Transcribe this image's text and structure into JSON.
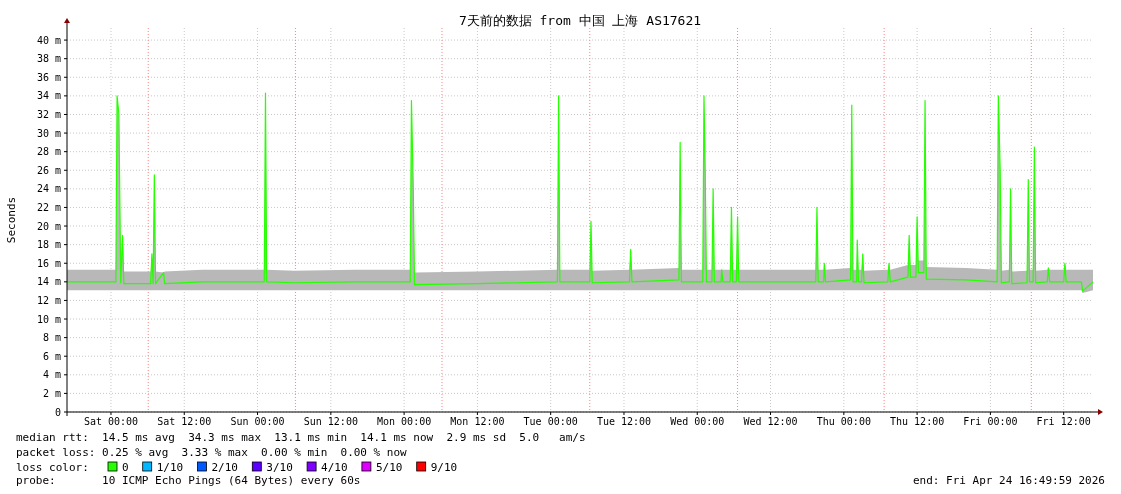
{
  "chart_data": {
    "type": "line",
    "title": "7天前的数据 from 中国 上海 AS17621",
    "ylabel": "Seconds",
    "xlim": [
      "2026-04-17T16:48",
      "2026-04-24T16:48"
    ],
    "ylim": [
      0,
      41.3
    ],
    "xticks": [
      {
        "value": "2026-04-18T00:00",
        "label": "Sat 00:00"
      },
      {
        "value": "2026-04-18T12:00",
        "label": "Sat 12:00"
      },
      {
        "value": "2026-04-19T00:00",
        "label": "Sun 00:00"
      },
      {
        "value": "2026-04-19T12:00",
        "label": "Sun 12:00"
      },
      {
        "value": "2026-04-20T00:00",
        "label": "Mon 00:00"
      },
      {
        "value": "2026-04-20T12:00",
        "label": "Mon 12:00"
      },
      {
        "value": "2026-04-21T00:00",
        "label": "Tue 00:00"
      },
      {
        "value": "2026-04-21T12:00",
        "label": "Tue 12:00"
      },
      {
        "value": "2026-04-22T00:00",
        "label": "Wed 00:00"
      },
      {
        "value": "2026-04-22T12:00",
        "label": "Wed 12:00"
      },
      {
        "value": "2026-04-23T00:00",
        "label": "Thu 00:00"
      },
      {
        "value": "2026-04-23T12:00",
        "label": "Thu 12:00"
      },
      {
        "value": "2026-04-24T00:00",
        "label": "Fri 00:00"
      },
      {
        "value": "2026-04-24T12:00",
        "label": "Fri 12:00"
      }
    ],
    "yticks": [
      0,
      {
        "value": 2,
        "label": "2 m"
      },
      {
        "value": 4,
        "label": "4 m"
      },
      {
        "value": 6,
        "label": "6 m"
      },
      {
        "value": 8,
        "label": "8 m"
      },
      {
        "value": 10,
        "label": "10 m"
      },
      {
        "value": 12,
        "label": "12 m"
      },
      {
        "value": 14,
        "label": "14 m"
      },
      {
        "value": 16,
        "label": "16 m"
      },
      {
        "value": 18,
        "label": "18 m"
      },
      {
        "value": 20,
        "label": "20 m"
      },
      {
        "value": 22,
        "label": "22 m"
      },
      {
        "value": 24,
        "label": "24 m"
      },
      {
        "value": 26,
        "label": "26 m"
      },
      {
        "value": 28,
        "label": "28 m"
      },
      {
        "value": 30,
        "label": "30 m"
      },
      {
        "value": 32,
        "label": "32 m"
      },
      {
        "value": 34,
        "label": "34 m"
      },
      {
        "value": 36,
        "label": "36 m"
      },
      {
        "value": 38,
        "label": "38 m"
      },
      {
        "value": 40,
        "label": "40 m"
      }
    ],
    "x": [
      "2026-04-17T16:48",
      "2026-04-18T00:48",
      "2026-04-18T01:00",
      "2026-04-18T01:18",
      "2026-04-18T01:36",
      "2026-04-18T01:54",
      "2026-04-18T02:06",
      "2026-04-18T06:30",
      "2026-04-18T06:42",
      "2026-04-18T06:54",
      "2026-04-18T07:06",
      "2026-04-18T07:18",
      "2026-04-18T08:36",
      "2026-04-18T08:48",
      "2026-04-18T15:00",
      "2026-04-19T01:06",
      "2026-04-19T01:18",
      "2026-04-19T01:30",
      "2026-04-19T06:00",
      "2026-04-19T16:00",
      "2026-04-20T01:00",
      "2026-04-20T01:12",
      "2026-04-20T01:30",
      "2026-04-20T01:42",
      "2026-04-20T12:00",
      "2026-04-21T01:06",
      "2026-04-21T01:18",
      "2026-04-21T01:30",
      "2026-04-21T06:24",
      "2026-04-21T06:36",
      "2026-04-21T06:48",
      "2026-04-21T12:54",
      "2026-04-21T13:06",
      "2026-04-21T13:18",
      "2026-04-21T21:00",
      "2026-04-21T21:12",
      "2026-04-21T21:24",
      "2026-04-22T00:54",
      "2026-04-22T01:06",
      "2026-04-22T01:18",
      "2026-04-22T01:30",
      "2026-04-22T02:24",
      "2026-04-22T02:36",
      "2026-04-22T02:48",
      "2026-04-22T03:54",
      "2026-04-22T04:00",
      "2026-04-22T04:12",
      "2026-04-22T05:24",
      "2026-04-22T05:36",
      "2026-04-22T05:48",
      "2026-04-22T06:24",
      "2026-04-22T06:36",
      "2026-04-22T06:48",
      "2026-04-22T14:00",
      "2026-04-22T19:24",
      "2026-04-22T19:36",
      "2026-04-22T19:48",
      "2026-04-22T20:42",
      "2026-04-22T20:48",
      "2026-04-22T21:00",
      "2026-04-23T01:06",
      "2026-04-23T01:18",
      "2026-04-23T01:30",
      "2026-04-23T02:06",
      "2026-04-23T02:12",
      "2026-04-23T02:24",
      "2026-04-23T02:54",
      "2026-04-23T03:06",
      "2026-04-23T03:18",
      "2026-04-23T07:12",
      "2026-04-23T07:24",
      "2026-04-23T07:36",
      "2026-04-23T10:30",
      "2026-04-23T10:42",
      "2026-04-23T10:54",
      "2026-04-23T11:48",
      "2026-04-23T12:00",
      "2026-04-23T12:12",
      "2026-04-23T13:06",
      "2026-04-23T13:18",
      "2026-04-23T13:30",
      "2026-04-23T20:00",
      "2026-04-24T01:06",
      "2026-04-24T01:18",
      "2026-04-24T01:36",
      "2026-04-24T01:48",
      "2026-04-24T03:06",
      "2026-04-24T03:18",
      "2026-04-24T03:30",
      "2026-04-24T06:00",
      "2026-04-24T06:12",
      "2026-04-24T06:24",
      "2026-04-24T07:00",
      "2026-04-24T07:12",
      "2026-04-24T07:24",
      "2026-04-24T09:18",
      "2026-04-24T09:30",
      "2026-04-24T09:42",
      "2026-04-24T12:00",
      "2026-04-24T12:12",
      "2026-04-24T12:24",
      "2026-04-24T14:54",
      "2026-04-24T15:06",
      "2026-04-24T16:48"
    ],
    "series": [
      {
        "name": "0",
        "color": "#26ff00",
        "values": [
          14.0,
          14.0,
          34.0,
          32.0,
          13.9,
          19.0,
          13.8,
          13.8,
          17.0,
          13.8,
          25.5,
          13.8,
          15.0,
          13.8,
          14.0,
          14.0,
          34.3,
          14.0,
          13.9,
          14.0,
          14.0,
          33.5,
          24.0,
          13.7,
          13.8,
          14.0,
          34.0,
          14.0,
          14.0,
          20.5,
          13.9,
          14.0,
          17.5,
          14.0,
          14.2,
          29.0,
          14.0,
          14.0,
          34.0,
          26.0,
          14.0,
          14.0,
          24.0,
          14.0,
          14.0,
          15.3,
          14.0,
          14.0,
          22.0,
          14.0,
          14.0,
          21.0,
          14.0,
          14.0,
          14.0,
          22.0,
          14.0,
          14.0,
          16.0,
          14.0,
          14.2,
          33.0,
          14.0,
          14.0,
          18.5,
          14.0,
          14.0,
          17.0,
          13.9,
          14.0,
          16.0,
          14.0,
          14.5,
          19.0,
          14.5,
          14.5,
          21.0,
          15.0,
          15.0,
          33.5,
          14.3,
          14.2,
          14.0,
          34.0,
          26.0,
          13.9,
          14.0,
          24.0,
          13.8,
          13.9,
          25.0,
          14.0,
          14.0,
          28.5,
          13.9,
          14.0,
          15.5,
          14.0,
          14.0,
          16.0,
          14.0,
          14.0,
          13.0,
          14.0
        ],
        "lower": [
          13.1,
          13.1,
          13.1,
          13.1,
          13.1,
          13.1,
          13.1,
          13.1,
          13.1,
          13.1,
          13.1,
          13.1,
          13.1,
          13.1,
          13.1,
          13.1,
          13.1,
          13.1,
          13.1,
          13.1,
          13.1,
          13.1,
          13.1,
          13.1,
          13.1,
          13.1,
          13.1,
          13.1,
          13.1,
          13.1,
          13.1,
          13.1,
          13.1,
          13.1,
          13.1,
          13.1,
          13.1,
          13.1,
          13.1,
          13.1,
          13.1,
          13.1,
          13.1,
          13.1,
          13.1,
          13.1,
          13.1,
          13.1,
          13.1,
          13.1,
          13.1,
          13.1,
          13.1,
          13.1,
          13.1,
          13.1,
          13.1,
          13.1,
          13.1,
          13.1,
          13.1,
          13.1,
          13.1,
          13.1,
          13.1,
          13.1,
          13.1,
          13.1,
          13.1,
          13.1,
          13.1,
          13.1,
          13.1,
          13.1,
          13.1,
          13.1,
          13.1,
          13.1,
          13.1,
          13.1,
          13.1,
          13.1,
          13.1,
          13.1,
          13.1,
          13.1,
          13.1,
          13.1,
          13.1,
          13.1,
          13.1,
          13.1,
          13.1,
          13.1,
          13.1,
          13.1,
          13.1,
          13.1,
          13.1,
          13.1,
          13.1,
          13.1,
          12.8,
          13.1
        ],
        "upper": [
          15.3,
          15.3,
          34.0,
          32.0,
          15.2,
          19.0,
          15.1,
          15.1,
          17.0,
          15.1,
          25.5,
          15.1,
          15.0,
          15.1,
          15.3,
          15.3,
          34.3,
          15.3,
          15.2,
          15.3,
          15.3,
          33.5,
          24.0,
          15.0,
          15.1,
          15.3,
          34.0,
          15.3,
          15.3,
          20.5,
          15.2,
          15.3,
          17.5,
          15.3,
          15.5,
          29.0,
          15.3,
          15.3,
          34.0,
          26.0,
          15.3,
          15.3,
          24.0,
          15.3,
          15.3,
          15.3,
          15.3,
          15.3,
          22.0,
          15.3,
          15.3,
          21.0,
          15.3,
          15.3,
          15.3,
          22.0,
          15.3,
          15.3,
          16.0,
          15.3,
          15.5,
          33.0,
          15.3,
          15.3,
          18.5,
          15.3,
          15.3,
          17.0,
          15.2,
          15.3,
          16.0,
          15.3,
          15.8,
          19.0,
          15.8,
          15.8,
          21.0,
          16.3,
          16.3,
          33.5,
          15.6,
          15.5,
          15.3,
          34.0,
          26.0,
          15.2,
          15.3,
          24.0,
          15.1,
          15.2,
          25.0,
          15.3,
          15.3,
          28.5,
          15.2,
          15.3,
          15.5,
          15.3,
          15.3,
          16.0,
          15.3,
          15.3,
          15.3,
          15.3
        ]
      },
      {
        "name": "1/10",
        "color": "#00b8ff",
        "values": [
          null,
          null,
          null,
          null,
          null,
          null,
          null,
          null,
          null,
          null,
          null,
          null,
          null,
          null,
          null,
          null,
          null,
          null,
          null,
          null,
          null,
          null,
          null,
          null,
          null,
          null,
          null,
          null,
          null,
          null,
          null,
          null,
          null,
          null,
          null,
          null,
          null,
          null,
          null,
          null,
          null,
          null,
          null,
          null,
          null,
          null,
          null,
          null,
          null,
          null,
          null,
          null,
          null,
          null,
          null,
          null,
          null,
          null,
          null,
          null,
          null,
          null,
          null,
          null,
          null,
          null,
          null,
          null,
          null,
          null,
          null,
          null,
          null,
          null,
          null,
          null,
          null,
          null,
          null,
          null,
          null,
          null,
          null,
          null,
          null,
          null,
          null,
          null,
          null,
          null,
          null,
          null,
          null,
          null,
          null,
          null,
          null,
          null,
          null,
          null,
          null,
          null,
          null,
          null
        ]
      },
      {
        "name": "2/10",
        "color": "#0059ff",
        "values": [
          null,
          null,
          null,
          null,
          null,
          null,
          null,
          null,
          null,
          null,
          null,
          null,
          null,
          null,
          null,
          null,
          null,
          null,
          null,
          null,
          null,
          null,
          null,
          null,
          null,
          null,
          null,
          null,
          null,
          null,
          null,
          null,
          null,
          null,
          null,
          null,
          null,
          null,
          null,
          null,
          null,
          null,
          null,
          null,
          null,
          null,
          null,
          null,
          null,
          null,
          null,
          null,
          null,
          null,
          null,
          null,
          null,
          null,
          null,
          null,
          null,
          null,
          null,
          null,
          null,
          null,
          null,
          null,
          null,
          null,
          null,
          null,
          null,
          null,
          null,
          null,
          null,
          null,
          null,
          null,
          null,
          null,
          null,
          null,
          null,
          null,
          null,
          null,
          null,
          null,
          null,
          null,
          null,
          null,
          null,
          null,
          null,
          null,
          null,
          null,
          null,
          null,
          null,
          null
        ]
      },
      {
        "name": "3/10",
        "color": "#5e00ff",
        "values": [
          null,
          null,
          null,
          null,
          null,
          null,
          null,
          null,
          null,
          null,
          null,
          null,
          null,
          null,
          null,
          null,
          null,
          null,
          null,
          null,
          null,
          null,
          null,
          null,
          null,
          null,
          null,
          null,
          null,
          null,
          null,
          null,
          null,
          null,
          null,
          null,
          null,
          null,
          null,
          null,
          null,
          null,
          null,
          null,
          null,
          null,
          null,
          null,
          null,
          null,
          null,
          null,
          null,
          null,
          null,
          null,
          null,
          null,
          null,
          null,
          null,
          null,
          null,
          null,
          null,
          null,
          null,
          null,
          null,
          null,
          null,
          null,
          null,
          null,
          null,
          null,
          null,
          null,
          null,
          null,
          null,
          null,
          null,
          null,
          null,
          null,
          null,
          null,
          null,
          null,
          null,
          null,
          null,
          null,
          null,
          null,
          null,
          null,
          null,
          null,
          null,
          null,
          null,
          null
        ]
      },
      {
        "name": "4/10",
        "color": "#7e00ff",
        "values": [
          null,
          null,
          null,
          null,
          null,
          null,
          null,
          null,
          null,
          null,
          null,
          null,
          null,
          null,
          null,
          null,
          null,
          null,
          null,
          null,
          null,
          null,
          null,
          null,
          null,
          null,
          null,
          null,
          null,
          null,
          null,
          null,
          null,
          null,
          null,
          null,
          null,
          null,
          null,
          null,
          null,
          null,
          null,
          null,
          null,
          null,
          null,
          null,
          null,
          null,
          null,
          null,
          null,
          null,
          null,
          null,
          null,
          null,
          null,
          null,
          null,
          null,
          null,
          null,
          null,
          null,
          null,
          null,
          null,
          null,
          null,
          null,
          null,
          null,
          null,
          null,
          null,
          null,
          null,
          null,
          null,
          null,
          null,
          null,
          null,
          null,
          null,
          null,
          null,
          null,
          null,
          null,
          null,
          null,
          null,
          null,
          null,
          null,
          null,
          null,
          null,
          null,
          null,
          null
        ]
      },
      {
        "name": "5/10",
        "color": "#dd00ff",
        "values": [
          null,
          null,
          null,
          null,
          null,
          null,
          null,
          null,
          null,
          null,
          null,
          null,
          null,
          null,
          null,
          null,
          null,
          null,
          null,
          null,
          null,
          null,
          null,
          null,
          null,
          null,
          null,
          null,
          null,
          null,
          null,
          null,
          null,
          null,
          null,
          null,
          null,
          null,
          null,
          null,
          null,
          null,
          null,
          null,
          null,
          null,
          null,
          null,
          null,
          null,
          null,
          null,
          null,
          null,
          null,
          null,
          null,
          null,
          null,
          null,
          null,
          null,
          null,
          null,
          null,
          null,
          null,
          null,
          null,
          null,
          null,
          null,
          null,
          null,
          null,
          null,
          null,
          null,
          null,
          null,
          null,
          null,
          null,
          null,
          null,
          null,
          null,
          null,
          null,
          null,
          null,
          null,
          null,
          null,
          null,
          null,
          null,
          null,
          null,
          null,
          null,
          null,
          null,
          null
        ]
      },
      {
        "name": "9/10",
        "color": "#ff0000",
        "values": [
          null,
          null,
          null,
          null,
          null,
          null,
          null,
          null,
          null,
          null,
          null,
          null,
          null,
          null,
          null,
          null,
          null,
          null,
          null,
          null,
          null,
          null,
          null,
          null,
          null,
          null,
          null,
          null,
          null,
          null,
          null,
          null,
          null,
          null,
          null,
          null,
          null,
          null,
          null,
          null,
          null,
          null,
          null,
          null,
          null,
          null,
          null,
          null,
          null,
          null,
          null,
          null,
          null,
          null,
          null,
          null,
          null,
          null,
          null,
          null,
          null,
          null,
          null,
          null,
          null,
          null,
          null,
          null,
          null,
          null,
          null,
          null,
          null,
          null,
          null,
          null,
          null,
          null,
          null,
          null,
          null,
          null,
          null,
          null,
          null,
          null,
          null,
          null,
          null,
          null,
          null,
          null,
          null,
          null,
          null,
          null,
          null,
          null,
          null,
          null,
          null,
          null,
          null,
          null
        ]
      }
    ],
    "legend": "bottom",
    "legend_title": "loss color:",
    "grid": true,
    "line_style": "solid",
    "marker": "none",
    "ref_lines": [
      {
        "axis": "x",
        "value": "2026-04-18T06:06",
        "color": "#ff8080",
        "line_style": "dotted"
      },
      {
        "axis": "x",
        "value": "2026-04-19T06:12",
        "color": "#ff8080",
        "line_style": "dotted"
      },
      {
        "axis": "x",
        "value": "2026-04-20T06:12",
        "color": "#ff8080",
        "line_style": "dotted"
      },
      {
        "axis": "x",
        "value": "2026-04-21T06:24",
        "color": "#ff8080",
        "line_style": "dotted"
      },
      {
        "axis": "x",
        "value": "2026-04-22T06:36",
        "color": "#ff8080",
        "line_style": "dotted"
      },
      {
        "axis": "x",
        "value": "2026-04-23T06:36",
        "color": "#ff8080",
        "line_style": "dotted"
      },
      {
        "axis": "x",
        "value": "2026-04-24T06:42",
        "color": "#ff8080",
        "line_style": "dotted"
      }
    ],
    "annotations": [
      "median rtt:  14.5 ms avg  34.3 ms max  13.1 ms min  14.1 ms now  2.9 ms sd  5.0   am/s",
      "packet loss: 0.25 % avg  3.33 % max  0.00 % min  0.00 % now",
      "probe:       10 ICMP Echo Pings (64 Bytes) every 60s",
      "end: Fri Apr 24 16:49:59 2026"
    ]
  }
}
